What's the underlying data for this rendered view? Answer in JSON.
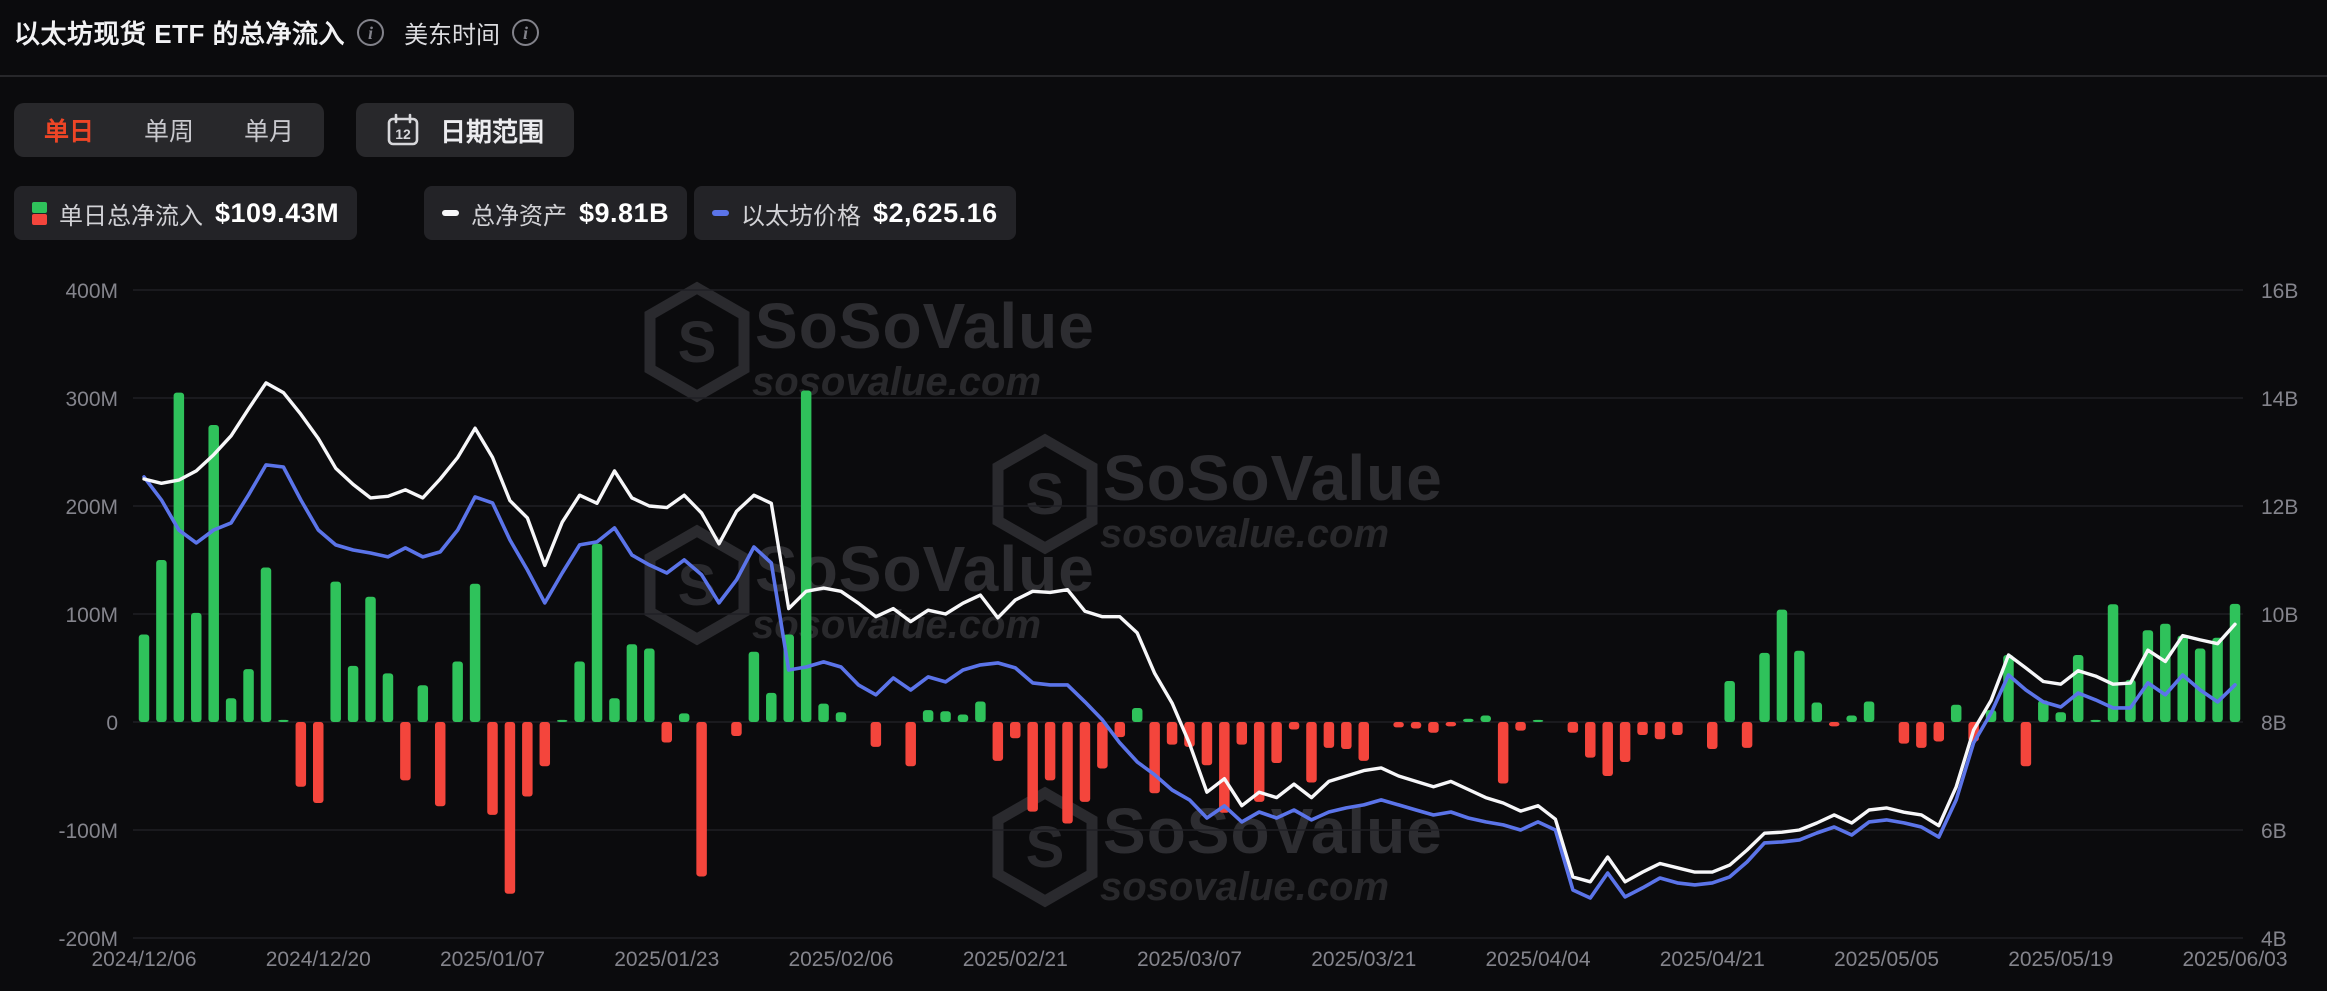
{
  "header": {
    "title": "以太坊现货 ETF 的总净流入",
    "timezone_label": "美东时间"
  },
  "toolbar": {
    "tabs": [
      {
        "label": "单日",
        "active": true
      },
      {
        "label": "单周",
        "active": false
      },
      {
        "label": "单月",
        "active": false
      }
    ],
    "date_range_label": "日期范围",
    "calendar_icon_day": "12"
  },
  "legend": [
    {
      "label": "单日总净流入",
      "value": "$109.43M",
      "swatch": "bar-green-red"
    },
    {
      "label": "总净资产",
      "value": "$9.81B",
      "swatch": "white-dash"
    },
    {
      "label": "以太坊价格",
      "value": "$2,625.16",
      "swatch": "blue-dash"
    }
  ],
  "watermark": {
    "name": "SoSoValue",
    "domain": "sosovalue.com"
  },
  "colors": {
    "bg": "#0b0b0d",
    "green_bar": "#2fc25b",
    "red_bar": "#f4453c",
    "white_line": "#f7f7f9",
    "blue_line": "#5b74e9",
    "tab_active": "#ee4526",
    "axis_text": "#84848c",
    "gridline": "#202025"
  },
  "chart_data": {
    "type": "bar",
    "title": "以太坊现货 ETF 的总净流入 (单日)",
    "grid": true,
    "legend_position": "top",
    "left_axis": {
      "label": "单日总净流入",
      "unit": "USD",
      "min": -200000000,
      "max": 400000000,
      "ticks": [
        "400M",
        "300M",
        "200M",
        "100M",
        "0",
        "-100M",
        "-200M"
      ]
    },
    "right_axis": {
      "label": "总净资产",
      "unit": "USD",
      "min": 4000000000,
      "max": 16000000000,
      "ticks": [
        "16B",
        "14B",
        "12B",
        "10B",
        "8B",
        "6B",
        "4B"
      ]
    },
    "price_axis": {
      "label": "以太坊价格",
      "unit": "USD",
      "visible": false,
      "min": 1271,
      "max": 4738
    },
    "x_tick_labels": [
      "2024/12/06",
      "2024/12/20",
      "2025/01/07",
      "2025/01/23",
      "2025/02/06",
      "2025/02/21",
      "2025/03/07",
      "2025/03/21",
      "2025/04/04",
      "2025/04/21",
      "2025/05/05",
      "2025/05/19",
      "2025/06/03"
    ],
    "dates": [
      "2024/12/06",
      "2024/12/09",
      "2024/12/10",
      "2024/12/11",
      "2024/12/12",
      "2024/12/13",
      "2024/12/16",
      "2024/12/17",
      "2024/12/18",
      "2024/12/19",
      "2024/12/20",
      "2024/12/23",
      "2024/12/24",
      "2024/12/26",
      "2024/12/27",
      "2024/12/30",
      "2024/12/31",
      "2025/01/02",
      "2025/01/03",
      "2025/01/06",
      "2025/01/07",
      "2025/01/08",
      "2025/01/10",
      "2025/01/13",
      "2025/01/14",
      "2025/01/15",
      "2025/01/16",
      "2025/01/17",
      "2025/01/21",
      "2025/01/22",
      "2025/01/23",
      "2025/01/24",
      "2025/01/27",
      "2025/01/28",
      "2025/01/29",
      "2025/01/30",
      "2025/01/31",
      "2025/02/03",
      "2025/02/04",
      "2025/02/05",
      "2025/02/06",
      "2025/02/07",
      "2025/02/10",
      "2025/02/11",
      "2025/02/12",
      "2025/02/13",
      "2025/02/14",
      "2025/02/18",
      "2025/02/19",
      "2025/02/20",
      "2025/02/21",
      "2025/02/24",
      "2025/02/25",
      "2025/02/26",
      "2025/02/27",
      "2025/02/28",
      "2025/03/03",
      "2025/03/04",
      "2025/03/05",
      "2025/03/06",
      "2025/03/07",
      "2025/03/10",
      "2025/03/11",
      "2025/03/12",
      "2025/03/13",
      "2025/03/14",
      "2025/03/17",
      "2025/03/18",
      "2025/03/19",
      "2025/03/20",
      "2025/03/21",
      "2025/03/24",
      "2025/03/25",
      "2025/03/26",
      "2025/03/27",
      "2025/03/28",
      "2025/03/31",
      "2025/04/01",
      "2025/04/02",
      "2025/04/03",
      "2025/04/04",
      "2025/04/07",
      "2025/04/08",
      "2025/04/09",
      "2025/04/10",
      "2025/04/11",
      "2025/04/14",
      "2025/04/15",
      "2025/04/16",
      "2025/04/17",
      "2025/04/21",
      "2025/04/22",
      "2025/04/23",
      "2025/04/24",
      "2025/04/25",
      "2025/04/28",
      "2025/04/29",
      "2025/04/30",
      "2025/05/01",
      "2025/05/02",
      "2025/05/05",
      "2025/05/06",
      "2025/05/07",
      "2025/05/08",
      "2025/05/09",
      "2025/05/12",
      "2025/05/13",
      "2025/05/14",
      "2025/05/15",
      "2025/05/16",
      "2025/05/19",
      "2025/05/20",
      "2025/05/21",
      "2025/05/22",
      "2025/05/23",
      "2025/05/27",
      "2025/05/28",
      "2025/05/29",
      "2025/05/30",
      "2025/06/02",
      "2025/06/03"
    ],
    "series": [
      {
        "name": "单日总净流入",
        "type": "bar",
        "axis": "left",
        "unit": "M USD",
        "color_positive": "#2fc25b",
        "color_negative": "#f4453c",
        "values_musd": [
          81,
          150,
          305,
          101,
          275,
          22,
          49,
          143,
          2,
          -60,
          -75,
          130,
          52,
          116,
          45,
          -54,
          34,
          -78,
          56,
          128,
          -86,
          -159,
          -69,
          -41,
          2,
          56,
          165,
          22,
          72,
          68,
          -19,
          8,
          -143,
          0,
          -13,
          65,
          27,
          81,
          307,
          17,
          9,
          0,
          -23,
          0,
          -41,
          11,
          10,
          7,
          19,
          -36,
          -15,
          -83,
          -54,
          -94,
          -74,
          -43,
          -14,
          13,
          -66,
          -21,
          -23,
          -40,
          -84,
          -21,
          -74,
          -38,
          -7,
          -56,
          -24,
          -25,
          -36,
          0,
          -5,
          -6,
          -10,
          -4,
          3,
          6,
          -57,
          -8,
          2,
          0,
          -10,
          -33,
          -50,
          -37,
          -12,
          -16,
          -12,
          0,
          -25,
          38,
          -24,
          64,
          104,
          66,
          18,
          -4,
          6,
          19,
          0,
          -20,
          -24,
          -18,
          16,
          -18,
          11,
          62,
          -41,
          20,
          9,
          62,
          2,
          109,
          39,
          85,
          91,
          80,
          68,
          78,
          109.43
        ]
      },
      {
        "name": "总净资产",
        "type": "line",
        "axis": "right",
        "unit": "B USD",
        "color": "#f7f7f9",
        "values_busd": [
          12.5,
          12.42,
          12.48,
          12.65,
          12.95,
          13.3,
          13.8,
          14.28,
          14.1,
          13.7,
          13.25,
          12.7,
          12.4,
          12.15,
          12.18,
          12.3,
          12.15,
          12.5,
          12.9,
          13.44,
          12.9,
          12.1,
          11.78,
          10.9,
          11.7,
          12.2,
          12.05,
          12.65,
          12.15,
          12.0,
          11.97,
          12.2,
          11.87,
          11.3,
          11.9,
          12.2,
          12.05,
          10.1,
          10.42,
          10.48,
          10.42,
          10.2,
          9.95,
          10.1,
          9.86,
          10.07,
          10.0,
          10.2,
          10.35,
          9.93,
          10.26,
          10.42,
          10.4,
          10.45,
          10.05,
          9.95,
          9.95,
          9.65,
          8.9,
          8.35,
          7.6,
          6.7,
          6.95,
          6.45,
          6.7,
          6.6,
          6.85,
          6.6,
          6.9,
          7.0,
          7.1,
          7.15,
          7.0,
          6.9,
          6.8,
          6.9,
          6.75,
          6.6,
          6.5,
          6.35,
          6.45,
          6.2,
          5.13,
          5.04,
          5.5,
          5.04,
          5.22,
          5.38,
          5.3,
          5.22,
          5.22,
          5.35,
          5.63,
          5.94,
          5.96,
          6.0,
          6.13,
          6.28,
          6.13,
          6.37,
          6.41,
          6.33,
          6.28,
          6.08,
          6.8,
          7.85,
          8.4,
          9.24,
          9.0,
          8.75,
          8.7,
          8.95,
          8.85,
          8.7,
          8.72,
          9.33,
          9.12,
          9.6,
          9.52,
          9.45,
          9.81
        ]
      },
      {
        "name": "以太坊价格",
        "type": "line",
        "axis": "price",
        "unit": "USD",
        "color": "#5b74e9",
        "values_usd": [
          3738,
          3615,
          3454,
          3385,
          3454,
          3492,
          3642,
          3802,
          3791,
          3615,
          3454,
          3374,
          3347,
          3331,
          3310,
          3358,
          3310,
          3337,
          3454,
          3631,
          3599,
          3401,
          3240,
          3064,
          3224,
          3374,
          3390,
          3465,
          3320,
          3267,
          3224,
          3294,
          3214,
          3064,
          3187,
          3363,
          3278,
          2705,
          2721,
          2748,
          2721,
          2625,
          2572,
          2662,
          2598,
          2668,
          2641,
          2705,
          2732,
          2743,
          2716,
          2636,
          2625,
          2625,
          2534,
          2438,
          2315,
          2213,
          2144,
          2063,
          2010,
          1913,
          1978,
          1892,
          1945,
          1913,
          1956,
          1903,
          1945,
          1967,
          1983,
          2010,
          1983,
          1956,
          1929,
          1945,
          1913,
          1892,
          1876,
          1849,
          1892,
          1849,
          1528,
          1485,
          1619,
          1491,
          1539,
          1592,
          1566,
          1555,
          1566,
          1598,
          1678,
          1780,
          1785,
          1796,
          1833,
          1865,
          1822,
          1892,
          1903,
          1887,
          1865,
          1811,
          2010,
          2315,
          2475,
          2678,
          2598,
          2534,
          2507,
          2582,
          2545,
          2502,
          2502,
          2636,
          2572,
          2678,
          2598,
          2534,
          2625.16
        ]
      }
    ]
  }
}
